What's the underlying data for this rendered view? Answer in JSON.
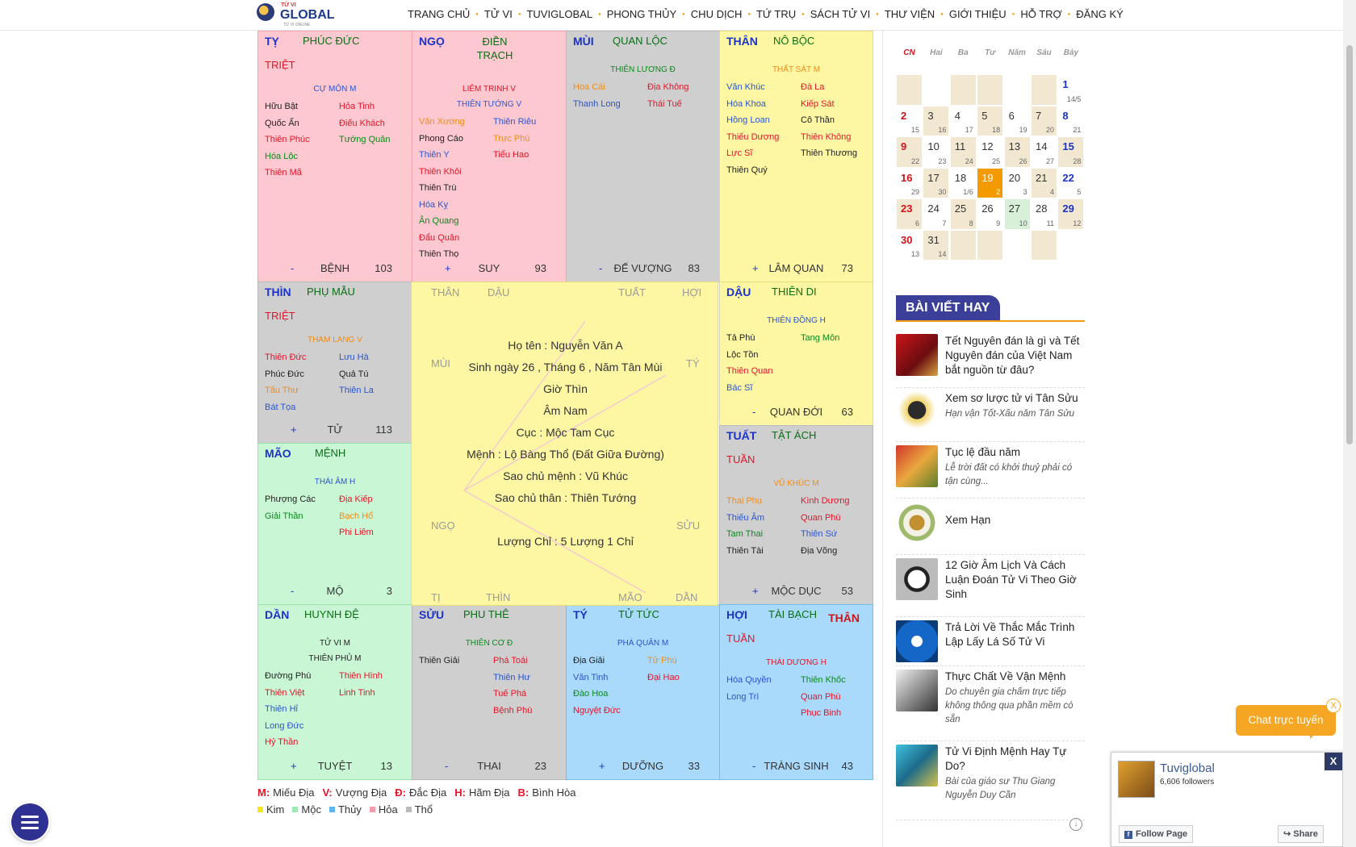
{
  "header": {
    "logo_small": "TỬ VI",
    "logo": "GLOBAL",
    "logo_sub": "TỬ VI ONLINE",
    "nav": [
      "TRANG CHỦ",
      "TỬ VI",
      "TUVIGLOBAL",
      "PHONG THỦY",
      "CHU DỊCH",
      "TỨ TRỤ",
      "SÁCH TỬ VI",
      "THƯ VIỆN",
      "GIỚI THIỆU",
      "HỖ TRỢ",
      "ĐĂNG KÝ"
    ]
  },
  "cells": {
    "ty": {
      "branch": "TỴ",
      "palace": "PHÚC ĐỨC",
      "tag": "TRIỆT",
      "main": [
        {
          "t": "CỰ MÔN M",
          "c": "blu"
        }
      ],
      "left": [
        {
          "t": "Hữu Bật",
          "c": "blk"
        },
        {
          "t": "Quốc Ấn",
          "c": "blk"
        },
        {
          "t": "Thiên Phúc",
          "c": "red"
        },
        {
          "t": "Hóa Lộc",
          "c": "grn"
        },
        {
          "t": "Thiên Mã",
          "c": "red"
        }
      ],
      "right": [
        {
          "t": "Hỏa Tinh",
          "c": "red"
        },
        {
          "t": "Điếu Khách",
          "c": "red"
        },
        {
          "t": "Tướng Quân",
          "c": "grn"
        }
      ],
      "sign": "-",
      "stage": "BỆNH",
      "num": "103"
    },
    "ngo": {
      "branch": "NGỌ",
      "palace": "ĐIỀN TRẠCH",
      "tag": "",
      "main": [
        {
          "t": "LIÊM TRINH V",
          "c": "red"
        },
        {
          "t": "THIÊN TƯỚNG V",
          "c": "blu"
        }
      ],
      "left": [
        {
          "t": "Văn Xương",
          "c": "org"
        },
        {
          "t": "Phong Cáo",
          "c": "blk"
        },
        {
          "t": "Thiên Y",
          "c": "blu"
        },
        {
          "t": "Thiên Khôi",
          "c": "red"
        },
        {
          "t": "Thiên Trù",
          "c": "blk"
        },
        {
          "t": "Hóa Kỵ",
          "c": "blu"
        },
        {
          "t": "Ân Quang",
          "c": "grn"
        },
        {
          "t": "Đẩu Quân",
          "c": "red"
        },
        {
          "t": "Thiên Thọ",
          "c": "blk"
        }
      ],
      "right": [
        {
          "t": "Thiên Riêu",
          "c": "blu"
        },
        {
          "t": "Trực Phù",
          "c": "org"
        },
        {
          "t": "Tiểu Hao",
          "c": "red"
        }
      ],
      "sign": "+",
      "stage": "SUY",
      "num": "93"
    },
    "mui": {
      "branch": "MÙI",
      "palace": "QUAN LỘC",
      "tag": "",
      "main": [
        {
          "t": "THIÊN LƯƠNG Đ",
          "c": "grn"
        }
      ],
      "left": [
        {
          "t": "Hoa Cái",
          "c": "org"
        },
        {
          "t": "Thanh Long",
          "c": "blu"
        }
      ],
      "right": [
        {
          "t": "Địa Không",
          "c": "red"
        },
        {
          "t": "Thái Tuế",
          "c": "red"
        }
      ],
      "sign": "-",
      "stage": "ĐẾ VƯỢNG",
      "num": "83"
    },
    "than": {
      "branch": "THÂN",
      "palace": "NÔ BỘC",
      "tag": "",
      "main": [
        {
          "t": "THẤT SÁT M",
          "c": "org"
        }
      ],
      "left": [
        {
          "t": "Văn Khúc",
          "c": "blu"
        },
        {
          "t": "Hóa Khoa",
          "c": "blu"
        },
        {
          "t": "Hồng Loan",
          "c": "blu"
        },
        {
          "t": "Thiếu Dương",
          "c": "red"
        },
        {
          "t": "Lực Sĩ",
          "c": "red"
        },
        {
          "t": "Thiên Quý",
          "c": "blk"
        }
      ],
      "right": [
        {
          "t": "Đà La",
          "c": "red"
        },
        {
          "t": "Kiếp Sát",
          "c": "red"
        },
        {
          "t": "Cô Thần",
          "c": "blk"
        },
        {
          "t": "Thiên Không",
          "c": "red"
        },
        {
          "t": "Thiên Thương",
          "c": "blk"
        }
      ],
      "sign": "+",
      "stage": "LÂM QUAN",
      "num": "73"
    },
    "thin": {
      "branch": "THÌN",
      "palace": "PHỤ MẪU",
      "tag": "TRIỆT",
      "main": [
        {
          "t": "THAM LANG V",
          "c": "org"
        }
      ],
      "left": [
        {
          "t": "Thiên Đức",
          "c": "red"
        },
        {
          "t": "Phúc Đức",
          "c": "blk"
        },
        {
          "t": "Tấu Thư",
          "c": "org"
        },
        {
          "t": "Bát Tọa",
          "c": "blu"
        }
      ],
      "right": [
        {
          "t": "Lưu Hà",
          "c": "blu"
        },
        {
          "t": "Quả Tú",
          "c": "blk"
        },
        {
          "t": "Thiên La",
          "c": "blu"
        }
      ],
      "sign": "+",
      "stage": "TỬ",
      "num": "113"
    },
    "dau": {
      "branch": "DẬU",
      "palace": "THIÊN DI",
      "tag": "",
      "main": [
        {
          "t": "THIÊN ĐỒNG H",
          "c": "blu"
        }
      ],
      "left": [
        {
          "t": "Tả Phù",
          "c": "blk"
        },
        {
          "t": "Lộc Tồn",
          "c": "blk"
        },
        {
          "t": "Thiên Quan",
          "c": "red"
        },
        {
          "t": "Bác Sĩ",
          "c": "blu"
        }
      ],
      "right": [
        {
          "t": "Tang Môn",
          "c": "grn"
        }
      ],
      "sign": "-",
      "stage": "QUAN ĐỚI",
      "num": "63"
    },
    "mao": {
      "branch": "MÃO",
      "palace": "MỆNH",
      "tag": "",
      "main": [
        {
          "t": "THÁI ÂM H",
          "c": "blu"
        }
      ],
      "left": [
        {
          "t": "Phượng Các",
          "c": "blk"
        },
        {
          "t": "Giải Thần",
          "c": "grn"
        }
      ],
      "right": [
        {
          "t": "Địa Kiếp",
          "c": "red"
        },
        {
          "t": "Bạch Hổ",
          "c": "org"
        },
        {
          "t": "Phi Liêm",
          "c": "red"
        }
      ],
      "sign": "-",
      "stage": "MỘ",
      "num": "3"
    },
    "tuat": {
      "branch": "TUẤT",
      "palace": "TẬT ÁCH",
      "tag": "TUẦN",
      "main": [
        {
          "t": "VŨ KHÚC M",
          "c": "org"
        }
      ],
      "left": [
        {
          "t": "Thai Phụ",
          "c": "org"
        },
        {
          "t": "Thiếu Âm",
          "c": "blu"
        },
        {
          "t": "Tam Thai",
          "c": "grn"
        },
        {
          "t": "Thiên Tài",
          "c": "blk"
        }
      ],
      "right": [
        {
          "t": "Kình Dương",
          "c": "red"
        },
        {
          "t": "Quan Phù",
          "c": "red"
        },
        {
          "t": "Thiên Sứ",
          "c": "blu"
        },
        {
          "t": "Địa Võng",
          "c": "blk"
        }
      ],
      "sign": "+",
      "stage": "MỘC DỤC",
      "num": "53"
    },
    "dan": {
      "branch": "DẦN",
      "palace": "HUYNH ĐỆ",
      "tag": "",
      "main": [
        {
          "t": "TỬ VI M",
          "c": "blk"
        },
        {
          "t": "THIÊN PHỦ M",
          "c": "blk"
        }
      ],
      "left": [
        {
          "t": "Đường Phù",
          "c": "blk"
        },
        {
          "t": "Thiên Việt",
          "c": "red"
        },
        {
          "t": "Thiên Hỉ",
          "c": "blu"
        },
        {
          "t": "Long Đức",
          "c": "blu"
        },
        {
          "t": "Hỷ Thần",
          "c": "red"
        }
      ],
      "right": [
        {
          "t": "Thiên Hình",
          "c": "red"
        },
        {
          "t": "Linh Tinh",
          "c": "red"
        }
      ],
      "sign": "+",
      "stage": "TUYỆT",
      "num": "13"
    },
    "suu": {
      "branch": "SỬU",
      "palace": "PHU THÊ",
      "tag": "",
      "main": [
        {
          "t": "THIÊN CƠ Đ",
          "c": "grn"
        }
      ],
      "left": [
        {
          "t": "Thiên Giải",
          "c": "blk"
        }
      ],
      "right": [
        {
          "t": "Phá Toái",
          "c": "red"
        },
        {
          "t": "Thiên Hư",
          "c": "blu"
        },
        {
          "t": "Tuế Phá",
          "c": "red"
        },
        {
          "t": "Bệnh Phù",
          "c": "red"
        }
      ],
      "sign": "-",
      "stage": "THAI",
      "num": "23"
    },
    "ty2": {
      "branch": "TÝ",
      "palace": "TỬ TỨC",
      "tag": "",
      "main": [
        {
          "t": "PHÁ QUÂN M",
          "c": "blu"
        }
      ],
      "left": [
        {
          "t": "Địa Giải",
          "c": "blk"
        },
        {
          "t": "Văn Tinh",
          "c": "blu"
        },
        {
          "t": "Đào Hoa",
          "c": "grn"
        },
        {
          "t": "Nguyệt Đức",
          "c": "red"
        }
      ],
      "right": [
        {
          "t": "Tử Phù",
          "c": "org"
        },
        {
          "t": "Đại Hao",
          "c": "red"
        }
      ],
      "sign": "+",
      "stage": "DƯỠNG",
      "num": "33"
    },
    "hoi": {
      "branch": "HỢI",
      "palace": "TÀI BẠCH",
      "than": "THÂN",
      "tag": "TUẦN",
      "main": [
        {
          "t": "THÁI DƯƠNG H",
          "c": "red"
        }
      ],
      "left": [
        {
          "t": "Hóa Quyền",
          "c": "blu"
        },
        {
          "t": "Long Trì",
          "c": "blu"
        }
      ],
      "right": [
        {
          "t": "Thiên Khốc",
          "c": "grn"
        },
        {
          "t": "Quan Phù",
          "c": "red"
        },
        {
          "t": "Phục Binh",
          "c": "red"
        }
      ],
      "sign": "-",
      "stage": "TRÀNG SINH",
      "num": "43"
    }
  },
  "center": {
    "labels": {
      "than": "THÂN",
      "dau": "DẬU",
      "tuat": "TUẤT",
      "hoi": "HỢI",
      "mui": "MÙI",
      "ty": "TÝ",
      "ngo": "NGỌ",
      "suu": "SỬU",
      "ti": "TỊ",
      "thin": "THÌN",
      "mao": "MÃO",
      "dan": "DẦN"
    },
    "info": [
      "Họ tên : Nguyễn Văn A",
      "Sinh ngày 26 , Tháng 6 , Năm Tân Mùi",
      "Giờ Thìn",
      "Âm Nam",
      "Cục : Mộc Tam Cục",
      "Mệnh : Lộ Bàng Thổ (Đất Giữa Đường)",
      "Sao chủ mệnh : Vũ Khúc",
      "Sao chủ thân : Thiên Tướng"
    ],
    "luong": "Lượng Chỉ : 5 Lượng 1 Chỉ"
  },
  "legend": {
    "row1": [
      {
        "k": "M:",
        "v": "Miếu Địa"
      },
      {
        "k": "V:",
        "v": "Vượng Địa"
      },
      {
        "k": "Đ:",
        "v": "Đắc Địa"
      },
      {
        "k": "H:",
        "v": "Hãm Địa"
      },
      {
        "k": "B:",
        "v": "Bình Hòa"
      }
    ],
    "row2": [
      {
        "v": "Kim",
        "color": "#f5e61f"
      },
      {
        "v": "Mộc",
        "color": "#9ee8b4"
      },
      {
        "v": "Thủy",
        "color": "#5fb6ef"
      },
      {
        "v": "Hỏa",
        "color": "#f59cab"
      },
      {
        "v": "Thổ",
        "color": "#bbbbbb"
      }
    ]
  },
  "calendar": {
    "days": [
      "CN",
      "Hai",
      "Ba",
      "Tư",
      "Năm",
      "Sáu",
      "Bảy"
    ],
    "weeks": [
      [
        null,
        null,
        null,
        null,
        null,
        null,
        {
          "d": "1",
          "l": "14/5"
        }
      ],
      [
        {
          "d": "2",
          "l": "15"
        },
        {
          "d": "3",
          "l": "16"
        },
        {
          "d": "4",
          "l": "17"
        },
        {
          "d": "5",
          "l": "18"
        },
        {
          "d": "6",
          "l": "19"
        },
        {
          "d": "7",
          "l": "20"
        },
        {
          "d": "8",
          "l": "21"
        }
      ],
      [
        {
          "d": "9",
          "l": "22"
        },
        {
          "d": "10",
          "l": "23"
        },
        {
          "d": "11",
          "l": "24"
        },
        {
          "d": "12",
          "l": "25"
        },
        {
          "d": "13",
          "l": "26"
        },
        {
          "d": "14",
          "l": "27"
        },
        {
          "d": "15",
          "l": "28"
        }
      ],
      [
        {
          "d": "16",
          "l": "29"
        },
        {
          "d": "17",
          "l": "30"
        },
        {
          "d": "18",
          "l": "1/6"
        },
        {
          "d": "19",
          "l": "2",
          "today": true
        },
        {
          "d": "20",
          "l": "3"
        },
        {
          "d": "21",
          "l": "4"
        },
        {
          "d": "22",
          "l": "5"
        }
      ],
      [
        {
          "d": "23",
          "l": "6"
        },
        {
          "d": "24",
          "l": "7"
        },
        {
          "d": "25",
          "l": "8"
        },
        {
          "d": "26",
          "l": "9"
        },
        {
          "d": "27",
          "l": "10",
          "hl": true
        },
        {
          "d": "28",
          "l": "11"
        },
        {
          "d": "29",
          "l": "12"
        }
      ],
      [
        {
          "d": "30",
          "l": "13"
        },
        {
          "d": "31",
          "l": "14"
        },
        null,
        null,
        null,
        null,
        null
      ]
    ]
  },
  "sidebar": {
    "heading": "BÀI VIẾT HAY",
    "articles": [
      {
        "title": "Tết Nguyên đán là gì và Tết Nguyên đán của Việt Nam bắt nguồn từ đâu?",
        "desc": ""
      },
      {
        "title": "Xem sơ lược tử vi Tân Sửu",
        "desc": "Hạn vận Tốt-Xấu năm Tân Sửu"
      },
      {
        "title": "Tục lệ đầu năm",
        "desc": "Lễ trời đất có khởi thuỷ phải có tận cùng..."
      },
      {
        "title": "Xem Hạn",
        "desc": ""
      },
      {
        "title": "12 Giờ Âm Lịch Và Cách Luận Đoán Tử Vi Theo Giờ Sinh",
        "desc": ""
      },
      {
        "title": "Trả Lời Về Thắc Mắc Trình Lập Lấy Lá Số Tử Vi",
        "desc": ""
      },
      {
        "title": "Thực Chất Về Vận Mệnh",
        "desc": "Do chuyên gia chấm trực tiếp không thông qua phần mềm có sẵn"
      },
      {
        "title": "Tử Vi Định Mệnh Hay Tự Do?",
        "desc": "Bài của giáo sư Thu Giang Nguyễn Duy Cần"
      }
    ]
  },
  "chat": {
    "label": "Chat trực tuyến",
    "close": "X"
  },
  "fb": {
    "name": "Tuviglobal",
    "followers": "6,606 followers",
    "follow": "Follow Page",
    "share": "Share",
    "close": "X"
  }
}
